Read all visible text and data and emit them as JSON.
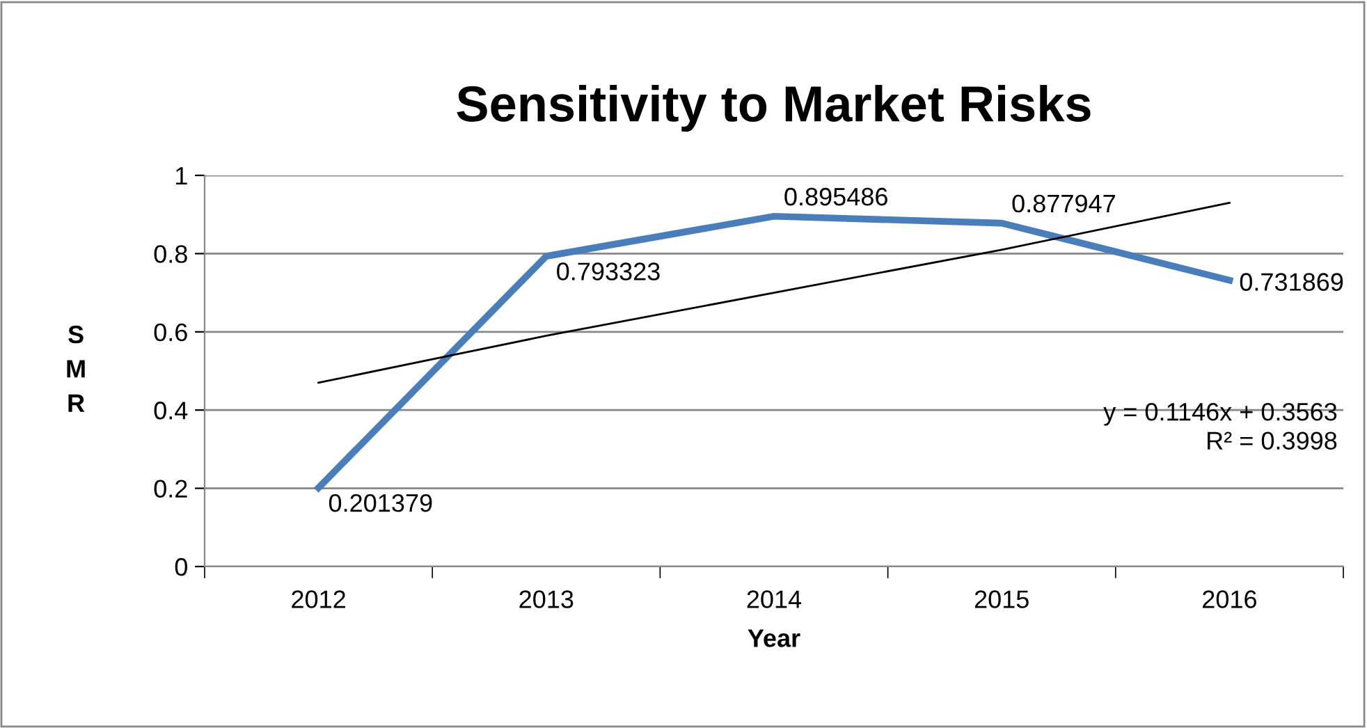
{
  "chart_data": {
    "type": "line",
    "title": "Sensitivity to Market Risks",
    "xlabel": "Year",
    "ylabel": "S\nM\nR",
    "categories": [
      "2012",
      "2013",
      "2014",
      "2015",
      "2016"
    ],
    "series": [
      {
        "color": "#4a7ebb",
        "values": [
          0.201379,
          0.793323,
          0.895486,
          0.877947,
          0.731869
        ],
        "value_labels": [
          "0.201379",
          "0.793323",
          "0.895486",
          "0.877947",
          "0.731869"
        ]
      },
      {
        "type": "line",
        "color": "#000000",
        "values": [
          0.47,
          0.59,
          0.7,
          0.81,
          0.93
        ]
      }
    ],
    "ylim": [
      0,
      1
    ],
    "yticks": [
      0,
      0.2,
      0.4,
      0.6,
      0.8,
      1
    ],
    "grid": "y",
    "legend": false,
    "marker": "none",
    "line_style": "solid",
    "annotations": [
      "y = 0.1146x + 0.3563\nR² = 0.3998"
    ]
  }
}
